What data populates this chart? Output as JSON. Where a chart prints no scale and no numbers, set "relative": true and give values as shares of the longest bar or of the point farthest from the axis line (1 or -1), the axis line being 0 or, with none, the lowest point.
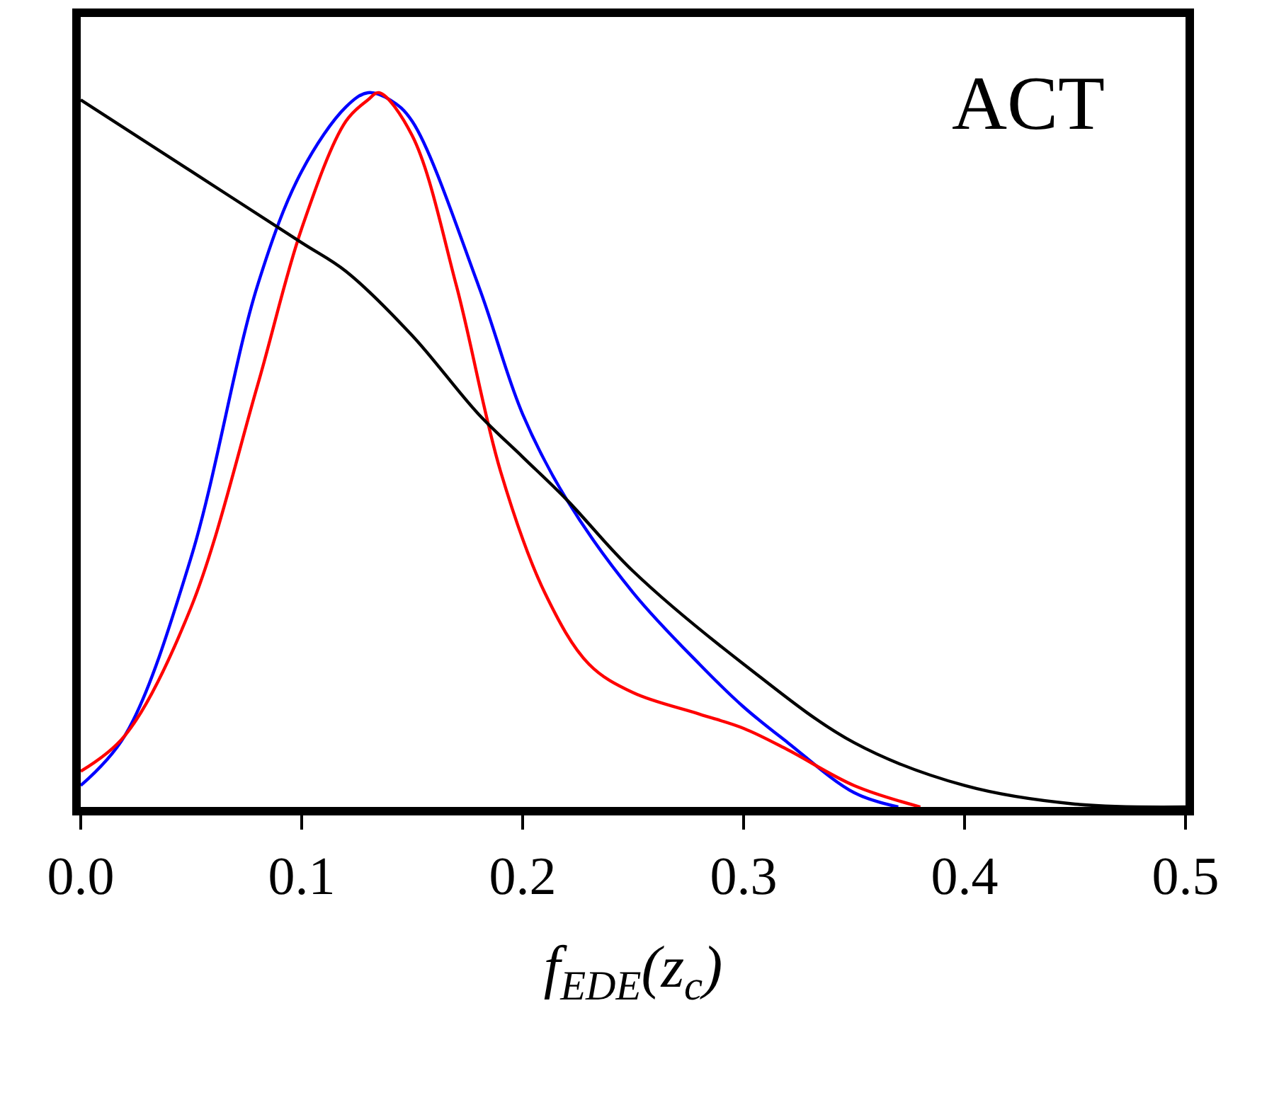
{
  "chart_data": {
    "type": "line",
    "relative": true,
    "xlabel": "f$_{EDE}$(z$_{c}$)",
    "annotations": [
      "ACT"
    ],
    "xlim": [
      0,
      0.5
    ],
    "xticks": [
      {
        "value": 0,
        "label": "0.0"
      },
      {
        "value": 0.1,
        "label": "0.1"
      },
      {
        "value": 0.2,
        "label": "0.2"
      },
      {
        "value": 0.3,
        "label": "0.3"
      },
      {
        "value": 0.4,
        "label": "0.4"
      },
      {
        "value": 0.5,
        "label": "0.5"
      }
    ],
    "marker": "none",
    "line_style": "solid",
    "series": [
      {
        "color": "#0000ff",
        "x": [
          0,
          0.02,
          0.05,
          0.08,
          0.1,
          0.12,
          0.13,
          0.14,
          0.15,
          0.18,
          0.2,
          0.22,
          0.25,
          0.28,
          0.3,
          0.32,
          0.35,
          0.37
        ],
        "values": [
          0.03,
          0.1,
          0.35,
          0.73,
          0.89,
          0.98,
          1,
          0.99,
          0.96,
          0.73,
          0.55,
          0.43,
          0.3,
          0.2,
          0.14,
          0.09,
          0.02,
          0
        ]
      },
      {
        "color": "#ff0000",
        "x": [
          0,
          0.02,
          0.05,
          0.08,
          0.1,
          0.12,
          0.13,
          0.135,
          0.15,
          0.17,
          0.19,
          0.21,
          0.23,
          0.25,
          0.28,
          0.3,
          0.32,
          0.35,
          0.38
        ],
        "values": [
          0.05,
          0.1,
          0.28,
          0.59,
          0.81,
          0.96,
          0.99,
          1,
          0.94,
          0.73,
          0.47,
          0.3,
          0.2,
          0.16,
          0.13,
          0.11,
          0.08,
          0.03,
          0
        ]
      },
      {
        "color": "#000000",
        "x": [
          0,
          0.05,
          0.1,
          0.12,
          0.15,
          0.18,
          0.2,
          0.22,
          0.25,
          0.3,
          0.35,
          0.4,
          0.45,
          0.5
        ],
        "values": [
          0.99,
          0.89,
          0.79,
          0.75,
          0.66,
          0.55,
          0.49,
          0.43,
          0.33,
          0.2,
          0.09,
          0.03,
          0.004,
          0
        ]
      }
    ]
  }
}
